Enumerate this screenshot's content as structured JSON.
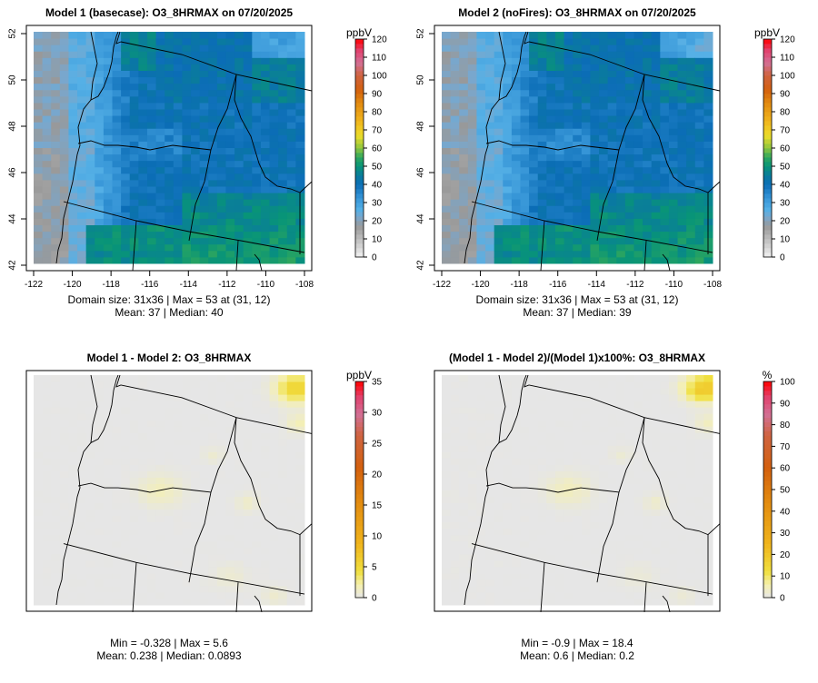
{
  "chart_data": [
    {
      "type": "heatmap",
      "title": "Model 1 (basecase): O3_8HRMAX on 07/20/2025",
      "unit": "ppbV",
      "colorbar_ticks": [
        0,
        10,
        20,
        30,
        40,
        50,
        60,
        70,
        80,
        90,
        100,
        110,
        120
      ],
      "clim": [
        0,
        120
      ],
      "xticks": [
        -122,
        -120,
        -118,
        -116,
        -114,
        -112,
        -110,
        -108
      ],
      "yticks": [
        42,
        44,
        46,
        48,
        50,
        52
      ],
      "grid": [
        31,
        36
      ],
      "stats_line1": "Domain size: 31x36 | Max = 53 at (31, 12)",
      "stats_line2": "Mean: 37 |  Median: 40",
      "field": "base"
    },
    {
      "type": "heatmap",
      "title": "Model 2 (noFires): O3_8HRMAX on 07/20/2025",
      "unit": "ppbV",
      "colorbar_ticks": [
        0,
        10,
        20,
        30,
        40,
        50,
        60,
        70,
        80,
        90,
        100,
        110,
        120
      ],
      "clim": [
        0,
        120
      ],
      "xticks": [
        -122,
        -120,
        -118,
        -116,
        -114,
        -112,
        -110,
        -108
      ],
      "yticks": [
        42,
        44,
        46,
        48,
        50,
        52
      ],
      "grid": [
        31,
        36
      ],
      "stats_line1": "Domain size: 31x36 | Max = 53 at (31, 12)",
      "stats_line2": "Mean: 37 |  Median: 39",
      "field": "nofire"
    },
    {
      "type": "heatmap",
      "title": "Model 1 - Model 2: O3_8HRMAX",
      "unit": "ppbV",
      "colorbar_ticks": [
        0,
        5,
        10,
        15,
        20,
        25,
        30,
        35
      ],
      "clim": [
        0,
        35
      ],
      "grid": [
        31,
        36
      ],
      "stats_line1": "Min = -0.328 | Max = 5.6",
      "stats_line2": "Mean: 0.238 |  Median: 0.0893",
      "field": "diff"
    },
    {
      "type": "heatmap",
      "title": "(Model 1 - Model 2)/(Model 1)x100%: O3_8HRMAX",
      "unit": "%",
      "colorbar_ticks": [
        0,
        10,
        20,
        30,
        40,
        50,
        60,
        70,
        80,
        90,
        100
      ],
      "clim": [
        0,
        100
      ],
      "grid": [
        31,
        36
      ],
      "stats_line1": "Min = -0.9 | Max = 18.4",
      "stats_line2": "Mean: 0.6 |  Median: 0.2",
      "field": "pct"
    }
  ]
}
